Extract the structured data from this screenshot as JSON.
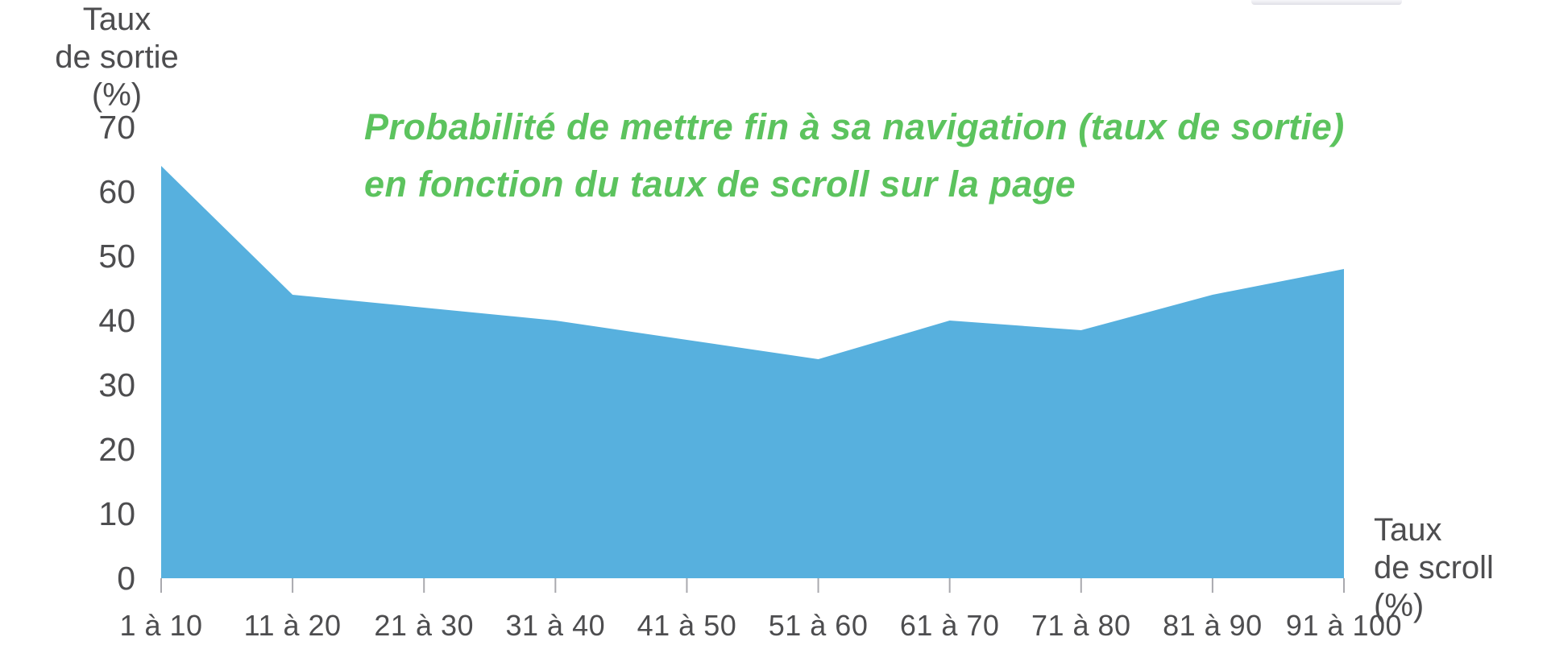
{
  "chart_data": {
    "type": "area",
    "title_lines": [
      "Probabilité de mettre fin à sa navigation (taux de sortie)",
      "en fonction du taux de scroll sur la page"
    ],
    "ylabel_lines": [
      "Taux",
      "de sortie (%)"
    ],
    "xlabel_lines": [
      "Taux",
      "de scroll (%)"
    ],
    "categories": [
      "1 à 10",
      "11 à 20",
      "21 à 30",
      "31 à 40",
      "41 à 50",
      "51 à 60",
      "61 à 70",
      "71 à 80",
      "81 à 90",
      "91 à 100"
    ],
    "values": [
      64,
      44,
      42,
      40,
      37,
      34,
      40,
      38.5,
      44,
      48
    ],
    "yticks": [
      70,
      60,
      50,
      40,
      30,
      20,
      10,
      0
    ],
    "ylim": [
      0,
      70
    ],
    "grid": false,
    "legend": false,
    "colors": {
      "area": "#57b0de",
      "title": "#5cc35e",
      "axis_text": "#4d4d4f",
      "tick_line": "#a9a9ae"
    }
  }
}
